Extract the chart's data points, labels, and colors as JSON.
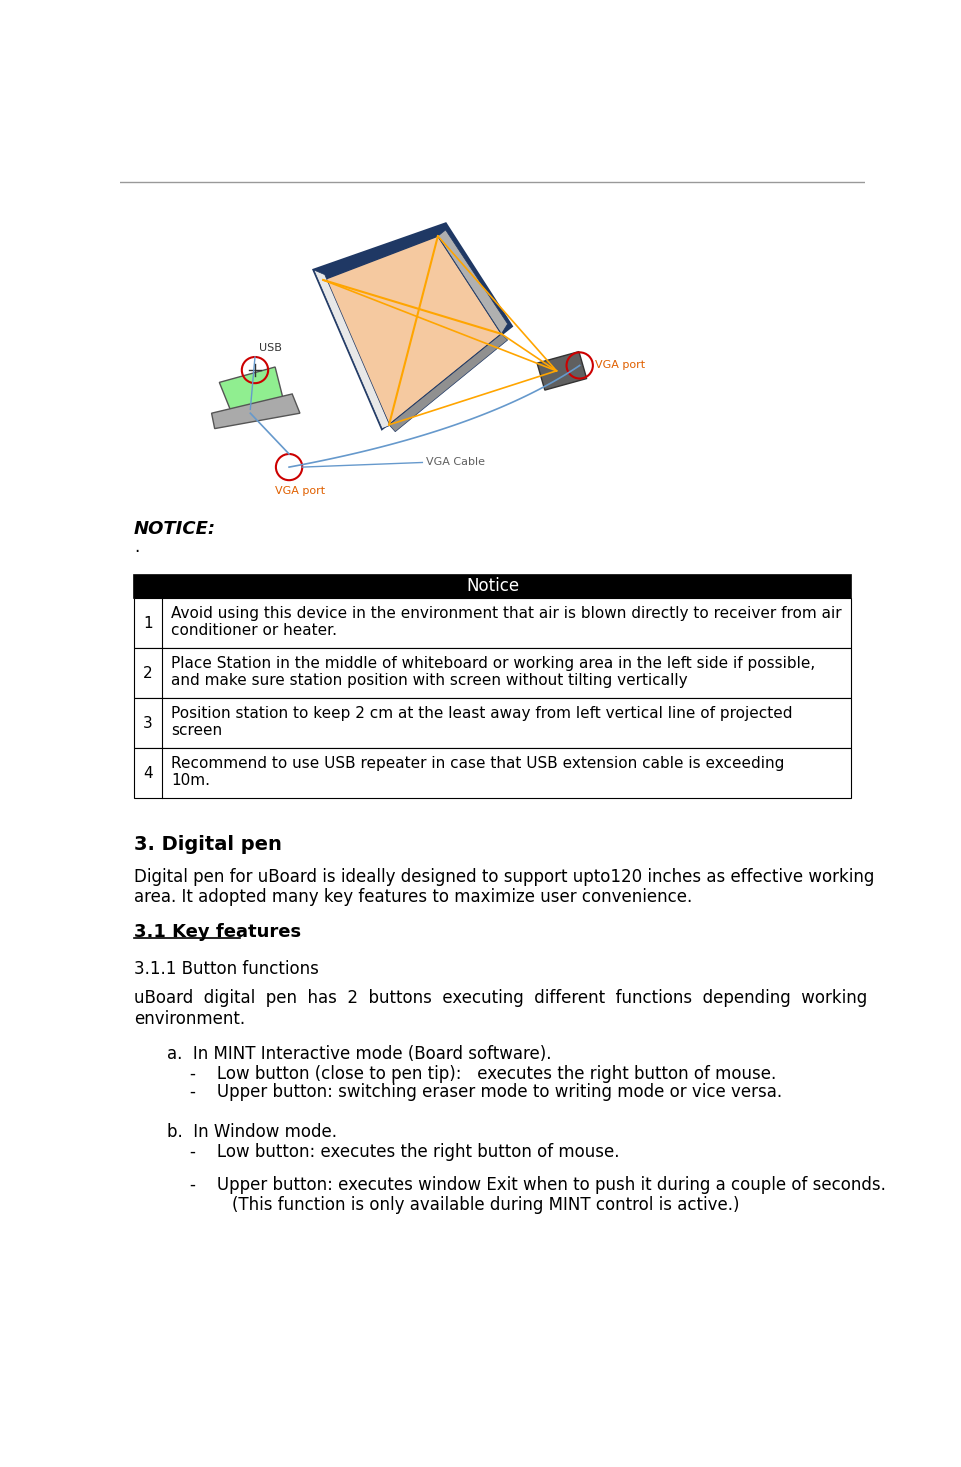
{
  "page_bg": "#ffffff",
  "top_line_color": "#999999",
  "notice_header": "Notice",
  "notice_header_bg": "#000000",
  "notice_header_fg": "#ffffff",
  "notice_rows": [
    [
      "1",
      "Avoid using this device in the environment that air is blown directly to receiver from air\nconditioner or heater."
    ],
    [
      "2",
      "Place Station in the middle of whiteboard or working area in the left side if possible,\nand make sure station position with screen without tilting vertically"
    ],
    [
      "3",
      "Position station to keep 2 cm at the least away from left vertical line of projected\nscreen"
    ],
    [
      "4",
      "Recommend to use USB repeater in case that USB extension cable is exceeding\n10m."
    ]
  ],
  "notice_table_border": "#000000",
  "section3_title": "3. Digital pen",
  "section3_body": "Digital pen for uBoard is ideally designed to support upto120 inches as effective working\narea. It adopted many key features to maximize user convenience.",
  "section31_title": "3.1 Key features",
  "section311_title": "3.1.1 Button functions",
  "section311_body": "uBoard  digital  pen  has  2  buttons  executing  different  functions  depending  working\nenvironment.",
  "notice_italic_bold": "NOTICE:",
  "notice_dot": ".",
  "section_a_title": "a.  In MINT Interactive mode (Board software).",
  "section_a_items": [
    "-    Low button (close to pen tip):   executes the right button of mouse.",
    "-    Upper button: switching eraser mode to writing mode or vice versa."
  ],
  "section_b_title": "b.  In Window mode.",
  "section_b_items": [
    "-    Low button: executes the right button of mouse.",
    "-    Upper button: executes window Exit when to push it during a couple of seconds.\n        (This function is only available during MINT control is active.)"
  ],
  "board_face_color": "#F5C9A0",
  "board_edge_color": "#1F3864",
  "diag_color": "#FFA500",
  "laptop_lid_color": "#90EE90",
  "proj_color": "#606060",
  "vga_circle_color": "#CC0000",
  "vga_label_color": "#E06000",
  "usb_label_color": "#333333",
  "cable_color": "#6699CC",
  "vgacable_label_color": "#606060"
}
